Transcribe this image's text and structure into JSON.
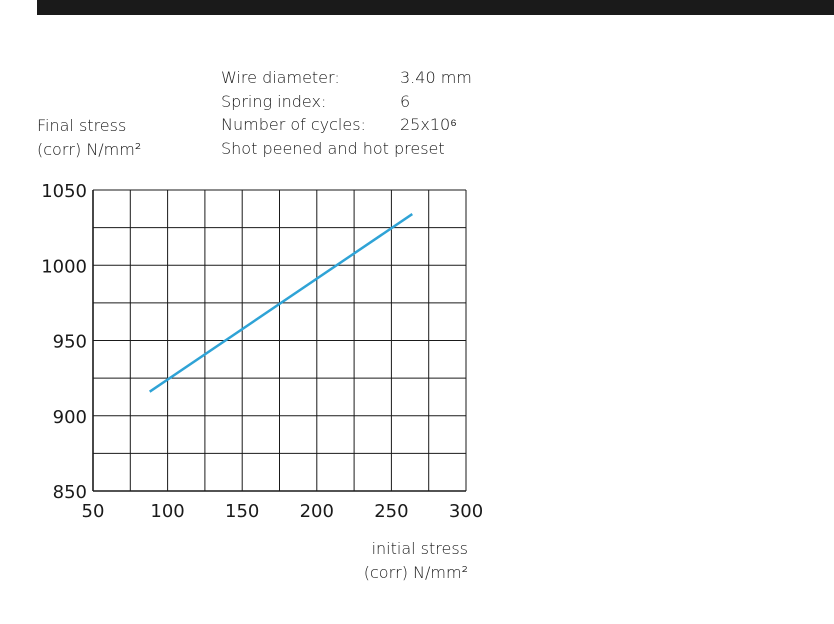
{
  "info": {
    "rows": [
      {
        "label": "Wire diameter:",
        "value": "3.40 mm"
      },
      {
        "label": "Spring index:",
        "value": "6"
      },
      {
        "label": "Number of cycles:",
        "value": "25x10⁶"
      }
    ],
    "note": "Shot peened and hot preset"
  },
  "chart_data": {
    "type": "line",
    "title": "",
    "ylabel": [
      "Final stress",
      "(corr) N/mm²"
    ],
    "xlabel": [
      "initial stress",
      "(corr) N/mm²"
    ],
    "xlim": [
      50,
      300
    ],
    "ylim": [
      850,
      1050
    ],
    "x_ticks": [
      50,
      100,
      150,
      200,
      250,
      300
    ],
    "y_ticks": [
      850,
      900,
      950,
      1000,
      1050
    ],
    "grid": true,
    "grid_x_step": 25,
    "grid_y_step": 25,
    "series": [
      {
        "color": "#2fa3d6",
        "x": [
          88,
          264
        ],
        "y": [
          916,
          1034
        ]
      }
    ]
  }
}
